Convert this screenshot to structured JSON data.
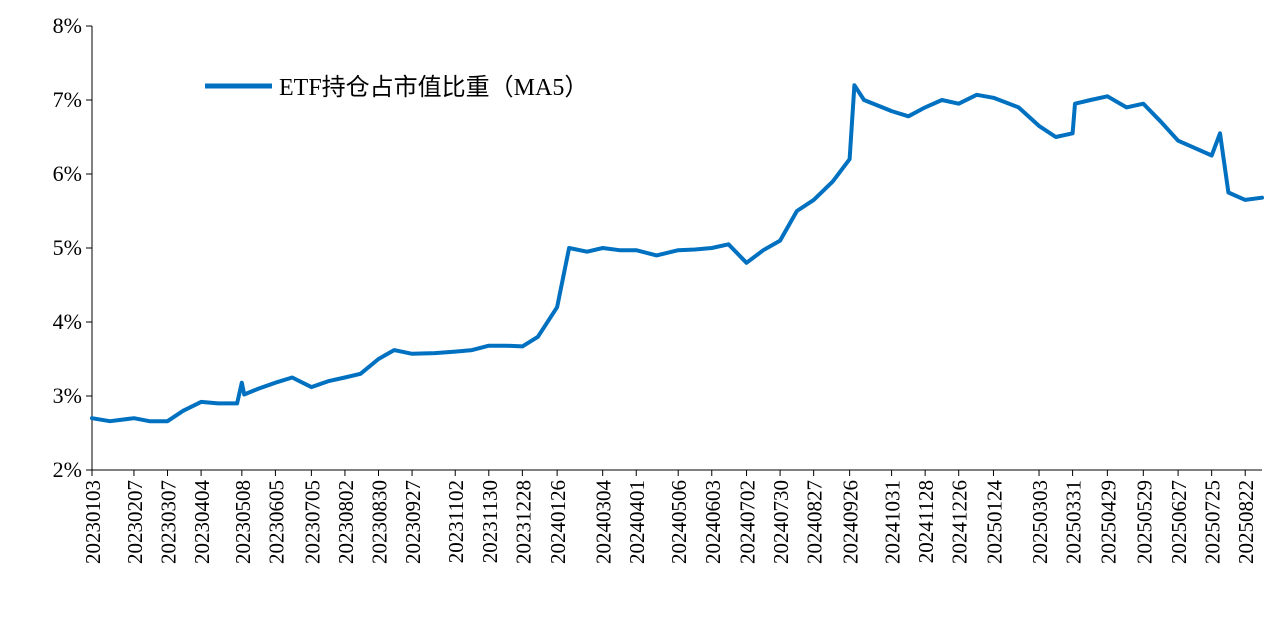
{
  "chart_data": {
    "type": "line",
    "title": "",
    "xlabel": "",
    "ylabel": "",
    "ylim": [
      0.02,
      0.08
    ],
    "y_ticks": [
      0.02,
      0.03,
      0.04,
      0.05,
      0.06,
      0.07,
      0.08
    ],
    "y_tick_labels": [
      "2%",
      "3%",
      "4%",
      "5%",
      "6%",
      "7%",
      "8%"
    ],
    "x_tick_labels": [
      "20230103",
      "20230207",
      "20230307",
      "20230404",
      "20230508",
      "20230605",
      "20230705",
      "20230802",
      "20230830",
      "20230927",
      "20231102",
      "20231130",
      "20231228",
      "20240126",
      "20240304",
      "20240401",
      "20240506",
      "20240603",
      "20240702",
      "20240730",
      "20240827",
      "20240926",
      "20241031",
      "20241128",
      "20241226",
      "20250124",
      "20250303",
      "20250331",
      "20250429",
      "20250529",
      "20250627",
      "20250725",
      "20250822"
    ],
    "grid": false,
    "legend_position": "top-left",
    "series": [
      {
        "name": "ETF持仓占市值比重（MA5）",
        "color": "#0070C0",
        "x": [
          "20230103",
          "20230118",
          "20230207",
          "20230220",
          "20230307",
          "20230320",
          "20230404",
          "20230418",
          "20230504",
          "20230508",
          "20230510",
          "20230522",
          "20230605",
          "20230619",
          "20230705",
          "20230719",
          "20230802",
          "20230815",
          "20230830",
          "20230912",
          "20230927",
          "20231016",
          "20231102",
          "20231116",
          "20231130",
          "20231214",
          "20231228",
          "20240110",
          "20240126",
          "20240205",
          "20240220",
          "20240304",
          "20240318",
          "20240401",
          "20240418",
          "20240506",
          "20240520",
          "20240603",
          "20240617",
          "20240702",
          "20240716",
          "20240730",
          "20240813",
          "20240827",
          "20240912",
          "20240926",
          "20240930",
          "20241008",
          "20241031",
          "20241114",
          "20241128",
          "20241212",
          "20241226",
          "20250110",
          "20250124",
          "20250214",
          "20250303",
          "20250317",
          "20250331",
          "20250402",
          "20250415",
          "20250429",
          "20250515",
          "20250529",
          "20250613",
          "20250627",
          "20250711",
          "20250725",
          "20250801",
          "20250808",
          "20250822",
          "20250905"
        ],
        "values": [
          0.027,
          0.0266,
          0.027,
          0.0266,
          0.0266,
          0.028,
          0.0292,
          0.029,
          0.029,
          0.0318,
          0.0302,
          0.031,
          0.0318,
          0.0325,
          0.0312,
          0.032,
          0.0325,
          0.033,
          0.035,
          0.0362,
          0.0357,
          0.0358,
          0.036,
          0.0362,
          0.0368,
          0.0368,
          0.0367,
          0.038,
          0.042,
          0.05,
          0.0495,
          0.05,
          0.0497,
          0.0497,
          0.049,
          0.0497,
          0.0498,
          0.05,
          0.0505,
          0.048,
          0.0497,
          0.051,
          0.055,
          0.0565,
          0.059,
          0.062,
          0.072,
          0.07,
          0.0685,
          0.0678,
          0.069,
          0.07,
          0.0695,
          0.0707,
          0.0703,
          0.069,
          0.0665,
          0.065,
          0.0655,
          0.0695,
          0.07,
          0.0705,
          0.069,
          0.0695,
          0.067,
          0.0645,
          0.0635,
          0.0625,
          0.0655,
          0.0575,
          0.0565,
          0.0568
        ]
      }
    ]
  }
}
